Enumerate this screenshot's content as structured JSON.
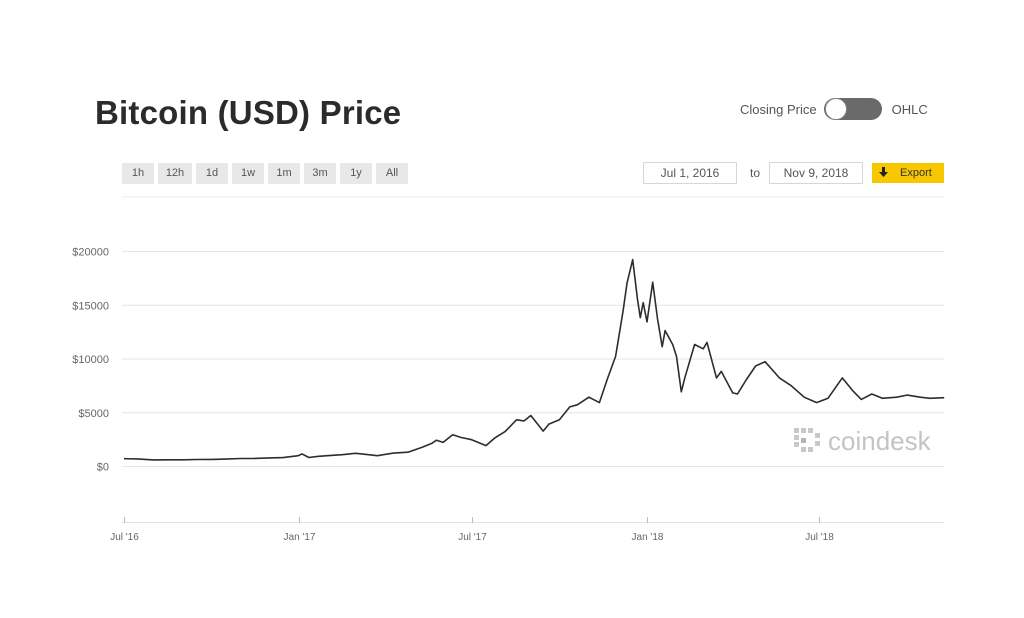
{
  "header": {
    "title": "Bitcoin (USD) Price"
  },
  "toggle": {
    "left_label": "Closing Price",
    "right_label": "OHLC"
  },
  "ranges": [
    "1h",
    "12h",
    "1d",
    "1w",
    "1m",
    "3m",
    "1y",
    "All"
  ],
  "date_range": {
    "from": "Jul 1, 2016",
    "to_label": "to",
    "to": "Nov 9, 2018"
  },
  "export_label": "Export",
  "watermark": "coindesk",
  "colors": {
    "line": "#2d2d2d",
    "export_bg": "#f7c700",
    "grid": "#e5e5e5"
  },
  "chart_data": {
    "type": "line",
    "title": "Bitcoin (USD) Price",
    "xlabel": "",
    "ylabel": "",
    "y_ticks": [
      {
        "value": 0,
        "label": "$0"
      },
      {
        "value": 5000,
        "label": "$5000"
      },
      {
        "value": 10000,
        "label": "$10000"
      },
      {
        "value": 15000,
        "label": "$15000"
      },
      {
        "value": 20000,
        "label": "$20000"
      }
    ],
    "x_ticks": [
      {
        "date": "2016-07-01",
        "label": "Jul '16"
      },
      {
        "date": "2017-01-01",
        "label": "Jan '17"
      },
      {
        "date": "2017-07-01",
        "label": "Jul '17"
      },
      {
        "date": "2018-01-01",
        "label": "Jan '18"
      },
      {
        "date": "2018-07-01",
        "label": "Jul '18"
      }
    ],
    "xlim": [
      "2016-07-01",
      "2018-11-09"
    ],
    "ylim": [
      0,
      20000
    ],
    "grid": true,
    "series": [
      {
        "x": [
          "2016-07-01",
          "2016-07-15",
          "2016-08-01",
          "2016-08-15",
          "2016-09-01",
          "2016-09-15",
          "2016-10-01",
          "2016-10-15",
          "2016-11-01",
          "2016-11-15",
          "2016-12-01",
          "2016-12-15",
          "2016-12-31",
          "2017-01-04",
          "2017-01-11",
          "2017-01-20",
          "2017-02-01",
          "2017-02-15",
          "2017-03-01",
          "2017-03-10",
          "2017-03-24",
          "2017-04-10",
          "2017-04-25",
          "2017-05-10",
          "2017-05-20",
          "2017-05-25",
          "2017-06-01",
          "2017-06-11",
          "2017-06-20",
          "2017-07-01",
          "2017-07-16",
          "2017-07-25",
          "2017-08-05",
          "2017-08-17",
          "2017-08-25",
          "2017-09-01",
          "2017-09-14",
          "2017-09-20",
          "2017-10-01",
          "2017-10-12",
          "2017-10-20",
          "2017-11-01",
          "2017-11-12",
          "2017-11-20",
          "2017-11-29",
          "2017-12-07",
          "2017-12-11",
          "2017-12-17",
          "2017-12-22",
          "2017-12-25",
          "2017-12-28",
          "2018-01-01",
          "2018-01-07",
          "2018-01-12",
          "2018-01-17",
          "2018-01-20",
          "2018-01-28",
          "2018-02-01",
          "2018-02-06",
          "2018-02-10",
          "2018-02-20",
          "2018-03-01",
          "2018-03-05",
          "2018-03-15",
          "2018-03-20",
          "2018-04-01",
          "2018-04-06",
          "2018-04-15",
          "2018-04-25",
          "2018-05-05",
          "2018-05-20",
          "2018-06-01",
          "2018-06-15",
          "2018-06-28",
          "2018-07-10",
          "2018-07-25",
          "2018-08-05",
          "2018-08-14",
          "2018-08-25",
          "2018-09-05",
          "2018-09-20",
          "2018-10-01",
          "2018-10-15",
          "2018-10-25",
          "2018-11-09"
        ],
        "y": [
          675,
          660,
          570,
          575,
          580,
          605,
          610,
          640,
          700,
          710,
          750,
          780,
          960,
          1130,
          790,
          890,
          970,
          1050,
          1180,
          1100,
          960,
          1200,
          1280,
          1750,
          2100,
          2400,
          2200,
          2900,
          2650,
          2450,
          1900,
          2600,
          3200,
          4300,
          4200,
          4700,
          3250,
          3900,
          4300,
          5500,
          5700,
          6400,
          5900,
          8000,
          10200,
          14500,
          17000,
          19200,
          15500,
          13800,
          15200,
          13400,
          17100,
          13700,
          11100,
          12600,
          11300,
          10200,
          6900,
          8300,
          11300,
          10900,
          11500,
          8200,
          8800,
          6800,
          6700,
          8000,
          9300,
          9700,
          8200,
          7500,
          6400,
          5900,
          6300,
          8200,
          7000,
          6200,
          6700,
          6300,
          6400,
          6600,
          6400,
          6300,
          6350
        ]
      }
    ]
  }
}
